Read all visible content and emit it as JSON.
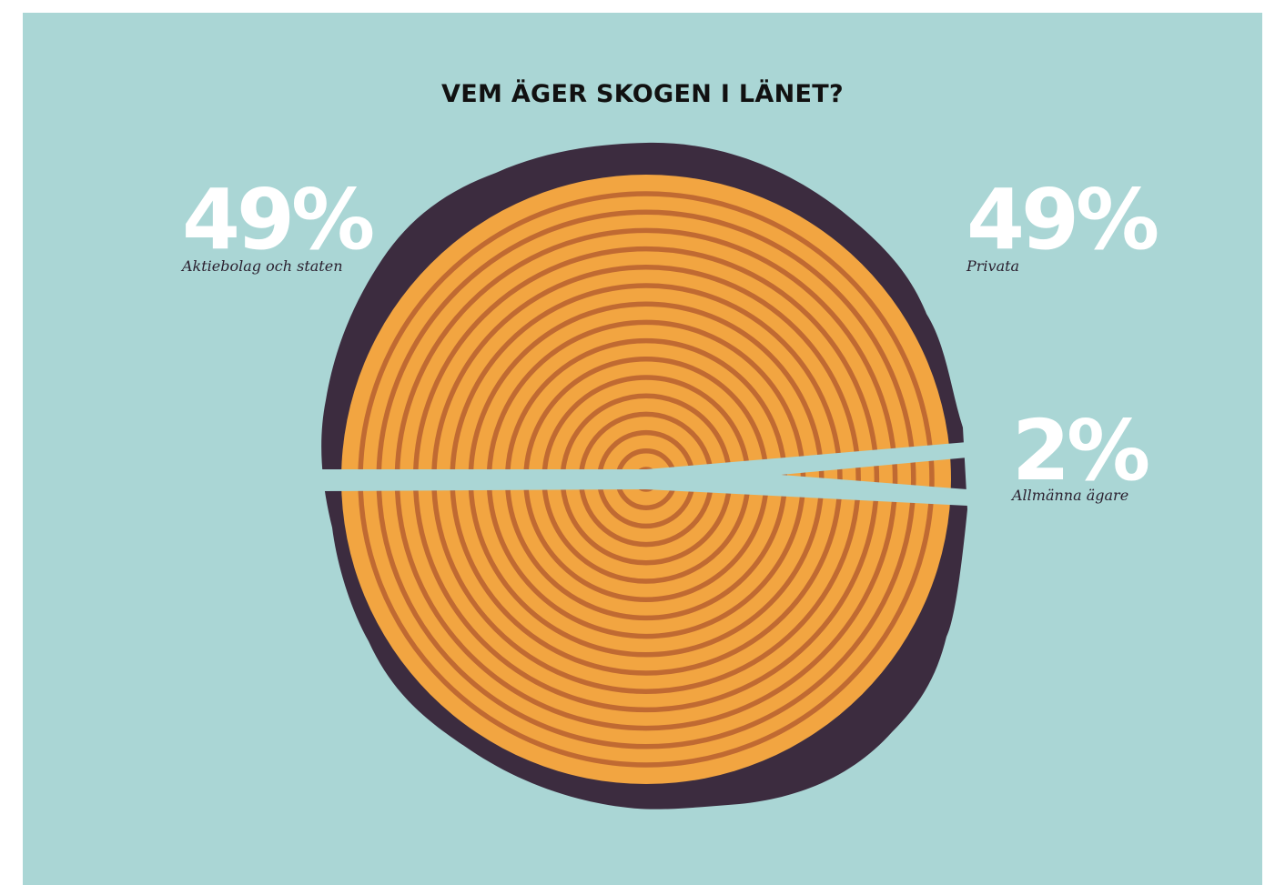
{
  "chart_data": {
    "type": "pie",
    "title": "VEM ÄGER SKOGEN I LÄNET?",
    "slices": [
      {
        "value": 49,
        "value_label": "49%",
        "label": "Aktiebolag och staten"
      },
      {
        "value": 49,
        "value_label": "49%",
        "label": "Privata"
      },
      {
        "value": 2,
        "value_label": "2%",
        "label": "Allmänna ägare"
      }
    ]
  },
  "colors": {
    "background": "#aad6d5",
    "wood": "#f2a541",
    "rings": "#c06a32",
    "bark": "#3c2c3f",
    "value_text": "#ffffff",
    "label_text": "#2a1f2e"
  }
}
